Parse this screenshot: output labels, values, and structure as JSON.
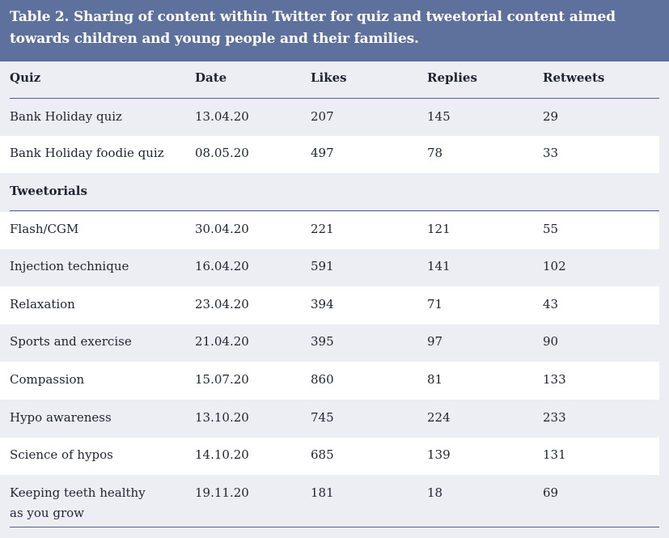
{
  "caption": "Table 2. Sharing of content within Twitter for quiz and tweetorial content aimed towards children and young people and their families.",
  "header": [
    "Quiz",
    "Date",
    "Likes",
    "Replies",
    "Retweets"
  ],
  "quiz_rows": [
    {
      "name": "Bank Holiday quiz",
      "date": "13.04.20",
      "likes": "207",
      "replies": "145",
      "retweets": "29"
    },
    {
      "name": "Bank Holiday foodie quiz",
      "date": "08.05.20",
      "likes": "497",
      "replies": "78",
      "retweets": "33"
    }
  ],
  "section_label": "Tweetorials",
  "tweetorial_rows": [
    {
      "name": "Flash/CGM",
      "date": "30.04.20",
      "likes": "221",
      "replies": "121",
      "retweets": "55"
    },
    {
      "name": "Injection technique",
      "date": "16.04.20",
      "likes": "591",
      "replies": "141",
      "retweets": "102"
    },
    {
      "name": "Relaxation",
      "date": "23.04.20",
      "likes": "394",
      "replies": "71",
      "retweets": "43"
    },
    {
      "name": "Sports and exercise",
      "date": "21.04.20",
      "likes": "395",
      "replies": "97",
      "retweets": "90"
    },
    {
      "name": "Compassion",
      "date": "15.07.20",
      "likes": "860",
      "replies": "81",
      "retweets": "133"
    },
    {
      "name": "Hypo awareness",
      "date": "13.10.20",
      "likes": "745",
      "replies": "224",
      "retweets": "233"
    },
    {
      "name": "Science of hypos",
      "date": "14.10.20",
      "likes": "685",
      "replies": "139",
      "retweets": "131"
    },
    {
      "name_line1": "Keeping teeth healthy",
      "name_line2": "as you grow",
      "date": "19.11.20",
      "likes": "181",
      "replies": "18",
      "retweets": "69"
    }
  ]
}
